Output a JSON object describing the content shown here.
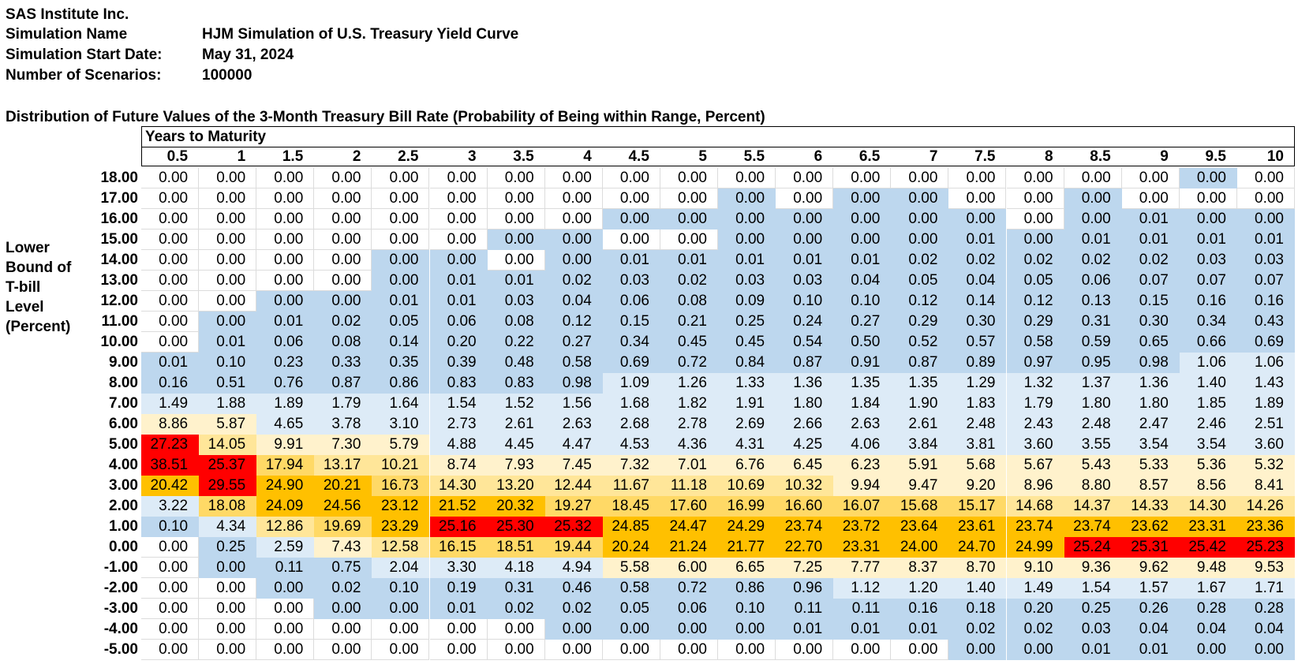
{
  "header": {
    "company": "SAS Institute Inc.",
    "simulation_name_label": "Simulation Name",
    "simulation_name": "HJM Simulation of U.S. Treasury Yield Curve",
    "start_date_label": "Simulation Start Date:",
    "start_date": "May 31, 2024",
    "scenarios_label": "Number of Scenarios:",
    "scenarios": "100000"
  },
  "chart_data": {
    "type": "heatmap",
    "title": "Distribution of Future Values of the 3-Month Treasury Bill Rate (Probability of Being within Range, Percent)",
    "xlabel": "Years to Maturity",
    "ylabel_lines": [
      "Lower",
      "Bound of",
      "T-bill",
      "Level",
      "(Percent)"
    ],
    "x": [
      "0.5",
      "1",
      "1.5",
      "2",
      "2.5",
      "3",
      "3.5",
      "4",
      "4.5",
      "5",
      "5.5",
      "6",
      "6.5",
      "7",
      "7.5",
      "8",
      "8.5",
      "9",
      "9.5",
      "10"
    ],
    "y": [
      "18.00",
      "17.00",
      "16.00",
      "15.00",
      "14.00",
      "13.00",
      "12.00",
      "11.00",
      "10.00",
      "9.00",
      "8.00",
      "7.00",
      "6.00",
      "5.00",
      "4.00",
      "3.00",
      "2.00",
      "1.00",
      "0.00",
      "-1.00",
      "-2.00",
      "-3.00",
      "-4.00",
      "-5.00"
    ],
    "values": [
      [
        "0.00",
        "0.00",
        "0.00",
        "0.00",
        "0.00",
        "0.00",
        "0.00",
        "0.00",
        "0.00",
        "0.00",
        "0.00",
        "0.00",
        "0.00",
        "0.00",
        "0.00",
        "0.00",
        "0.00",
        "0.00",
        "0.00",
        "0.00"
      ],
      [
        "0.00",
        "0.00",
        "0.00",
        "0.00",
        "0.00",
        "0.00",
        "0.00",
        "0.00",
        "0.00",
        "0.00",
        "0.00",
        "0.00",
        "0.00",
        "0.00",
        "0.00",
        "0.00",
        "0.00",
        "0.00",
        "0.00",
        "0.00"
      ],
      [
        "0.00",
        "0.00",
        "0.00",
        "0.00",
        "0.00",
        "0.00",
        "0.00",
        "0.00",
        "0.00",
        "0.00",
        "0.00",
        "0.00",
        "0.00",
        "0.00",
        "0.00",
        "0.00",
        "0.00",
        "0.01",
        "0.00",
        "0.00"
      ],
      [
        "0.00",
        "0.00",
        "0.00",
        "0.00",
        "0.00",
        "0.00",
        "0.00",
        "0.00",
        "0.00",
        "0.00",
        "0.00",
        "0.00",
        "0.00",
        "0.00",
        "0.01",
        "0.00",
        "0.01",
        "0.01",
        "0.01",
        "0.01"
      ],
      [
        "0.00",
        "0.00",
        "0.00",
        "0.00",
        "0.00",
        "0.00",
        "0.00",
        "0.00",
        "0.01",
        "0.01",
        "0.01",
        "0.01",
        "0.01",
        "0.02",
        "0.02",
        "0.02",
        "0.02",
        "0.02",
        "0.03",
        "0.03"
      ],
      [
        "0.00",
        "0.00",
        "0.00",
        "0.00",
        "0.00",
        "0.01",
        "0.01",
        "0.02",
        "0.03",
        "0.02",
        "0.03",
        "0.03",
        "0.04",
        "0.05",
        "0.04",
        "0.05",
        "0.06",
        "0.07",
        "0.07",
        "0.07"
      ],
      [
        "0.00",
        "0.00",
        "0.00",
        "0.00",
        "0.01",
        "0.01",
        "0.03",
        "0.04",
        "0.06",
        "0.08",
        "0.09",
        "0.10",
        "0.10",
        "0.12",
        "0.14",
        "0.12",
        "0.13",
        "0.15",
        "0.16",
        "0.16"
      ],
      [
        "0.00",
        "0.00",
        "0.01",
        "0.02",
        "0.05",
        "0.06",
        "0.08",
        "0.12",
        "0.15",
        "0.21",
        "0.25",
        "0.24",
        "0.27",
        "0.29",
        "0.30",
        "0.29",
        "0.31",
        "0.30",
        "0.34",
        "0.43"
      ],
      [
        "0.00",
        "0.01",
        "0.06",
        "0.08",
        "0.14",
        "0.20",
        "0.22",
        "0.27",
        "0.34",
        "0.45",
        "0.45",
        "0.54",
        "0.50",
        "0.52",
        "0.57",
        "0.58",
        "0.59",
        "0.65",
        "0.66",
        "0.69"
      ],
      [
        "0.01",
        "0.10",
        "0.23",
        "0.33",
        "0.35",
        "0.39",
        "0.48",
        "0.58",
        "0.69",
        "0.72",
        "0.84",
        "0.87",
        "0.91",
        "0.87",
        "0.89",
        "0.97",
        "0.95",
        "0.98",
        "1.06",
        "1.06"
      ],
      [
        "0.16",
        "0.51",
        "0.76",
        "0.87",
        "0.86",
        "0.83",
        "0.83",
        "0.98",
        "1.09",
        "1.26",
        "1.33",
        "1.36",
        "1.35",
        "1.35",
        "1.29",
        "1.32",
        "1.37",
        "1.36",
        "1.40",
        "1.43"
      ],
      [
        "1.49",
        "1.88",
        "1.89",
        "1.79",
        "1.64",
        "1.54",
        "1.52",
        "1.56",
        "1.68",
        "1.82",
        "1.91",
        "1.80",
        "1.84",
        "1.90",
        "1.83",
        "1.79",
        "1.80",
        "1.80",
        "1.85",
        "1.89"
      ],
      [
        "8.86",
        "5.87",
        "4.65",
        "3.78",
        "3.10",
        "2.73",
        "2.61",
        "2.63",
        "2.68",
        "2.78",
        "2.69",
        "2.66",
        "2.63",
        "2.61",
        "2.48",
        "2.43",
        "2.48",
        "2.47",
        "2.46",
        "2.51"
      ],
      [
        "27.23",
        "14.05",
        "9.91",
        "7.30",
        "5.79",
        "4.88",
        "4.45",
        "4.47",
        "4.53",
        "4.36",
        "4.31",
        "4.25",
        "4.06",
        "3.84",
        "3.81",
        "3.60",
        "3.55",
        "3.54",
        "3.54",
        "3.60"
      ],
      [
        "38.51",
        "25.37",
        "17.94",
        "13.17",
        "10.21",
        "8.74",
        "7.93",
        "7.45",
        "7.32",
        "7.01",
        "6.76",
        "6.45",
        "6.23",
        "5.91",
        "5.68",
        "5.67",
        "5.43",
        "5.33",
        "5.36",
        "5.32"
      ],
      [
        "20.42",
        "29.55",
        "24.90",
        "20.21",
        "16.73",
        "14.30",
        "13.20",
        "12.44",
        "11.67",
        "11.18",
        "10.69",
        "10.32",
        "9.94",
        "9.47",
        "9.20",
        "8.96",
        "8.80",
        "8.57",
        "8.56",
        "8.41"
      ],
      [
        "3.22",
        "18.08",
        "24.09",
        "24.56",
        "23.12",
        "21.52",
        "20.32",
        "19.27",
        "18.45",
        "17.60",
        "16.99",
        "16.60",
        "16.07",
        "15.68",
        "15.17",
        "14.68",
        "14.37",
        "14.33",
        "14.30",
        "14.26"
      ],
      [
        "0.10",
        "4.34",
        "12.86",
        "19.69",
        "23.29",
        "25.16",
        "25.30",
        "25.32",
        "24.85",
        "24.47",
        "24.29",
        "23.74",
        "23.72",
        "23.64",
        "23.61",
        "23.74",
        "23.74",
        "23.62",
        "23.31",
        "23.36"
      ],
      [
        "0.00",
        "0.25",
        "2.59",
        "7.43",
        "12.58",
        "16.15",
        "18.51",
        "19.44",
        "20.24",
        "21.24",
        "21.77",
        "22.70",
        "23.31",
        "24.00",
        "24.70",
        "24.99",
        "25.24",
        "25.31",
        "25.42",
        "25.23"
      ],
      [
        "0.00",
        "0.00",
        "0.11",
        "0.75",
        "2.04",
        "3.30",
        "4.18",
        "4.94",
        "5.58",
        "6.00",
        "6.65",
        "7.25",
        "7.77",
        "8.37",
        "8.70",
        "9.10",
        "9.36",
        "9.62",
        "9.48",
        "9.53"
      ],
      [
        "0.00",
        "0.00",
        "0.00",
        "0.02",
        "0.10",
        "0.19",
        "0.31",
        "0.46",
        "0.58",
        "0.72",
        "0.86",
        "0.96",
        "1.12",
        "1.20",
        "1.40",
        "1.49",
        "1.54",
        "1.57",
        "1.67",
        "1.71"
      ],
      [
        "0.00",
        "0.00",
        "0.00",
        "0.00",
        "0.00",
        "0.01",
        "0.02",
        "0.02",
        "0.05",
        "0.06",
        "0.10",
        "0.11",
        "0.11",
        "0.16",
        "0.18",
        "0.20",
        "0.25",
        "0.26",
        "0.28",
        "0.28"
      ],
      [
        "0.00",
        "0.00",
        "0.00",
        "0.00",
        "0.00",
        "0.00",
        "0.00",
        "0.00",
        "0.00",
        "0.00",
        "0.00",
        "0.01",
        "0.01",
        "0.01",
        "0.02",
        "0.02",
        "0.03",
        "0.04",
        "0.04",
        "0.04"
      ],
      [
        "0.00",
        "0.00",
        "0.00",
        "0.00",
        "0.00",
        "0.00",
        "0.00",
        "0.00",
        "0.00",
        "0.00",
        "0.00",
        "0.00",
        "0.00",
        "0.00",
        "0.00",
        "0.00",
        "0.01",
        "0.01",
        "0.00",
        "0.00"
      ]
    ],
    "exact_zero_mask": [
      "11111111111111111101",
      "11111111110100110111",
      "11111111000000010000",
      "11111100110000000000",
      "11110010000000000000",
      "11110000000000000000",
      "11000000000000000000",
      "10000000000000000000",
      "10000000000000000000",
      "00000000000000000000",
      "00000000000000000000",
      "00000000000000000000",
      "00000000000000000000",
      "00000000000000000000",
      "00000000000000000000",
      "00000000000000000000",
      "00000000000000000000",
      "00000000000000000000",
      "10000000000000000000",
      "10000000000000000000",
      "11000000000000000000",
      "11100000000000000000",
      "11111110000000000000",
      "11111111111111000000"
    ],
    "color_scale": [
      {
        "min": 25,
        "color": "#FF0000"
      },
      {
        "min": 20,
        "color": "#FFC000"
      },
      {
        "min": 15,
        "color": "#FFD966"
      },
      {
        "min": 10,
        "color": "#FFE699"
      },
      {
        "min": 5,
        "color": "#FFF2CC"
      },
      {
        "min": 1,
        "color": "#DDEBF7"
      },
      {
        "min": 0,
        "color": "#BDD7EE"
      }
    ],
    "zero_color": "#FFFFFF"
  }
}
